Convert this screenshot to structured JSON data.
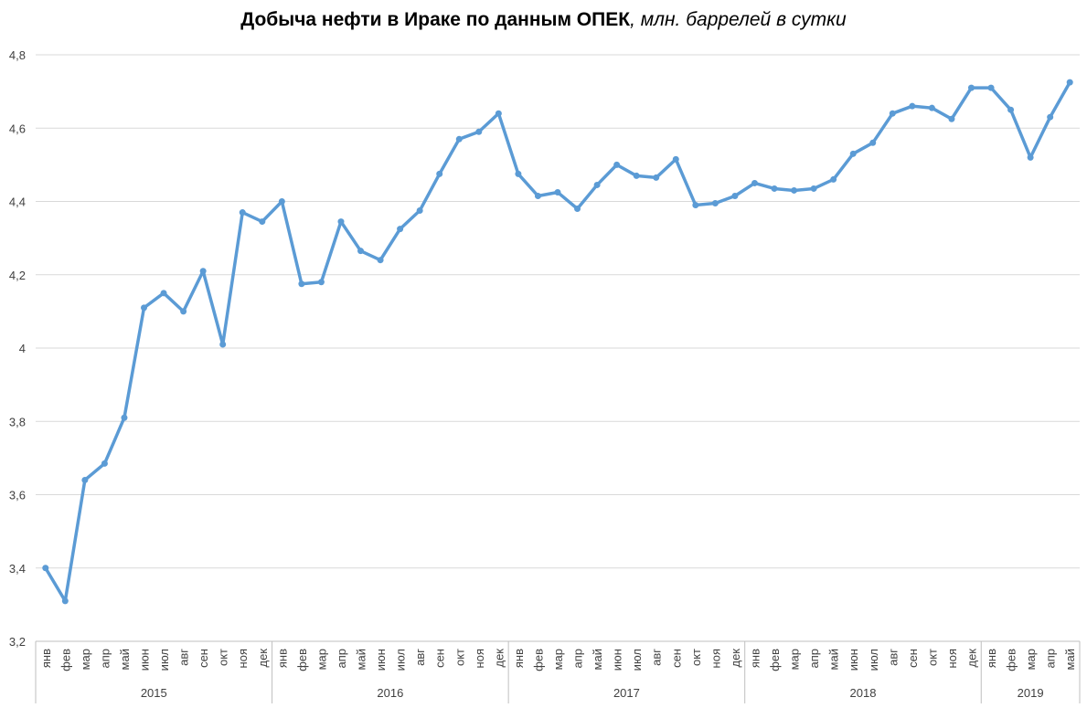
{
  "chart_data": {
    "type": "line",
    "title_main": "Добыча нефти в Ираке по данным ОПЕК",
    "title_unit": ", млн. баррелей в сутки",
    "ylim": [
      3.2,
      4.8
    ],
    "y_ticks": [
      "3,2",
      "3,4",
      "3,6",
      "3,8",
      "4",
      "4,2",
      "4,4",
      "4,6",
      "4,8"
    ],
    "y_tick_values": [
      3.2,
      3.4,
      3.6,
      3.8,
      4.0,
      4.2,
      4.4,
      4.6,
      4.8
    ],
    "grid": true,
    "legend": "none",
    "line_color": "#5B9BD5",
    "years": [
      {
        "label": "2015",
        "months": [
          "янв",
          "фев",
          "мар",
          "апр",
          "май",
          "июн",
          "июл",
          "авг",
          "сен",
          "окт",
          "ноя",
          "дек"
        ]
      },
      {
        "label": "2016",
        "months": [
          "янв",
          "фев",
          "мар",
          "апр",
          "май",
          "июн",
          "июл",
          "авг",
          "сен",
          "окт",
          "ноя",
          "дек"
        ]
      },
      {
        "label": "2017",
        "months": [
          "янв",
          "фев",
          "мар",
          "апр",
          "май",
          "июн",
          "июл",
          "авг",
          "сен",
          "окт",
          "ноя",
          "дек"
        ]
      },
      {
        "label": "2018",
        "months": [
          "янв",
          "фев",
          "мар",
          "апр",
          "май",
          "июн",
          "июл",
          "авг",
          "сен",
          "окт",
          "ноя",
          "дек"
        ]
      },
      {
        "label": "2019",
        "months": [
          "янв",
          "фев",
          "мар",
          "апр",
          "май"
        ]
      }
    ],
    "series": [
      {
        "values": [
          3.4,
          3.31,
          3.64,
          3.685,
          3.81,
          4.11,
          4.15,
          4.1,
          4.21,
          4.01,
          4.37,
          4.345,
          4.4,
          4.175,
          4.18,
          4.345,
          4.265,
          4.24,
          4.325,
          4.375,
          4.475,
          4.57,
          4.59,
          4.64,
          4.475,
          4.415,
          4.425,
          4.38,
          4.445,
          4.5,
          4.47,
          4.465,
          4.515,
          4.39,
          4.395,
          4.415,
          4.45,
          4.435,
          4.43,
          4.435,
          4.46,
          4.53,
          4.56,
          4.64,
          4.66,
          4.655,
          4.625,
          4.71,
          4.71,
          4.65,
          4.52,
          4.63,
          4.725
        ]
      }
    ]
  }
}
